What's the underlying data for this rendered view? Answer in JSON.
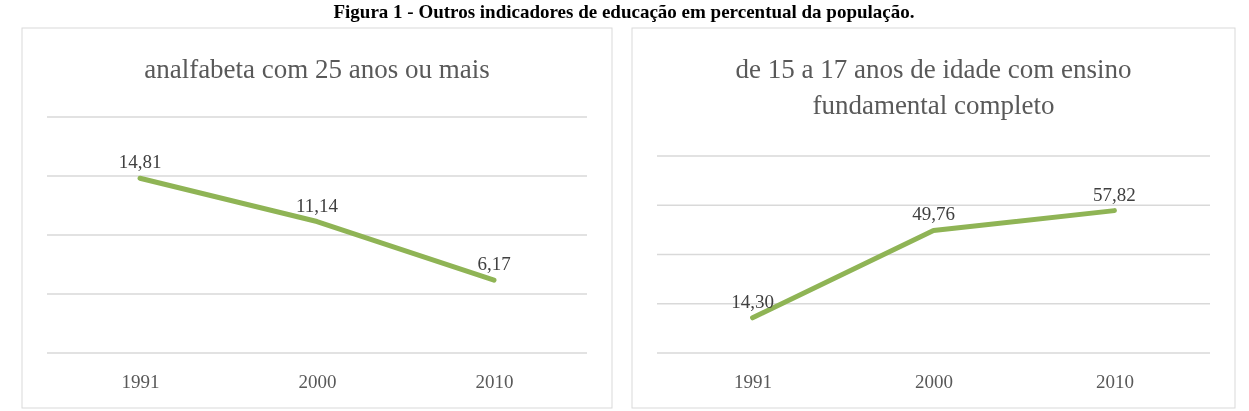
{
  "chart_data": [
    {
      "type": "line",
      "title": "analfabeta com 25 anos ou mais",
      "annotations": [
        "Figura 1 - Outros indicadores de educação em percentual da população."
      ],
      "categories": [
        "1991",
        "2000",
        "2010"
      ],
      "series": [
        {
          "color": "#8fb455",
          "values": [
            14.81,
            11.14,
            6.17
          ],
          "value_labels": [
            "14,81",
            "11,14",
            "6,17"
          ]
        }
      ],
      "ylim": [
        0,
        20
      ],
      "yticks": [
        {
          "value": 0,
          "label": null
        },
        {
          "value": 5,
          "label": null
        },
        {
          "value": 10,
          "label": null
        },
        {
          "value": 15,
          "label": null
        },
        {
          "value": 20,
          "label": null
        }
      ],
      "grid": "y",
      "tick_labels": "x"
    },
    {
      "type": "line",
      "title": "de 15 a 17 anos de idade com ensino fundamental completo",
      "categories": [
        "1991",
        "2000",
        "2010"
      ],
      "series": [
        {
          "color": "#8fb455",
          "values": [
            14.3,
            49.76,
            57.82
          ],
          "value_labels": [
            "14,30",
            "49,76",
            "57,82"
          ]
        }
      ],
      "ylim": [
        0,
        80
      ],
      "yticks": [
        {
          "value": 0,
          "label": null
        },
        {
          "value": 20,
          "label": null
        },
        {
          "value": 40,
          "label": null
        },
        {
          "value": 60,
          "label": null
        },
        {
          "value": 80,
          "label": null
        }
      ],
      "grid": "y",
      "tick_labels": "x"
    }
  ]
}
